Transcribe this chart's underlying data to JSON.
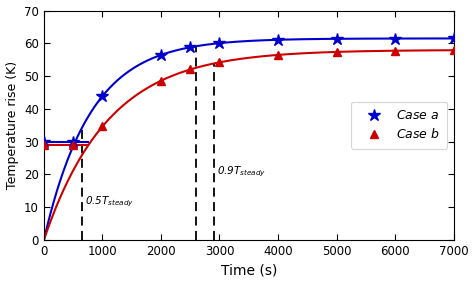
{
  "xlabel": "Time (s)",
  "ylabel": "Temperature rise (K)",
  "xlim": [
    0,
    7000
  ],
  "ylim": [
    0,
    70
  ],
  "xticks": [
    0,
    1000,
    2000,
    3000,
    4000,
    5000,
    6000,
    7000
  ],
  "yticks": [
    0,
    10,
    20,
    30,
    40,
    50,
    60,
    70
  ],
  "case_a_color": "#0000cc",
  "case_b_color": "#cc0000",
  "case_a_steady": 61.5,
  "case_b_steady": 58.0,
  "case_a_tau": 800,
  "case_b_tau": 1100,
  "case_a_flat": 30.0,
  "case_b_flat": 29.0,
  "dashed_line1_x": 650,
  "dashed_line2a_x": 2600,
  "dashed_line2b_x": 2900,
  "label_05": "0.5$T_{steady}$",
  "label_09": "0.9$T_{steady}$",
  "legend_a": "Case $a$",
  "legend_b": "Case $b$",
  "marker_times_a": [
    0,
    500,
    1000,
    2000,
    2500,
    3000,
    4000,
    5000,
    6000,
    7000
  ],
  "marker_times_b": [
    0,
    500,
    1000,
    2000,
    2500,
    3000,
    4000,
    5000,
    6000,
    7000
  ],
  "background_color": "#ffffff"
}
